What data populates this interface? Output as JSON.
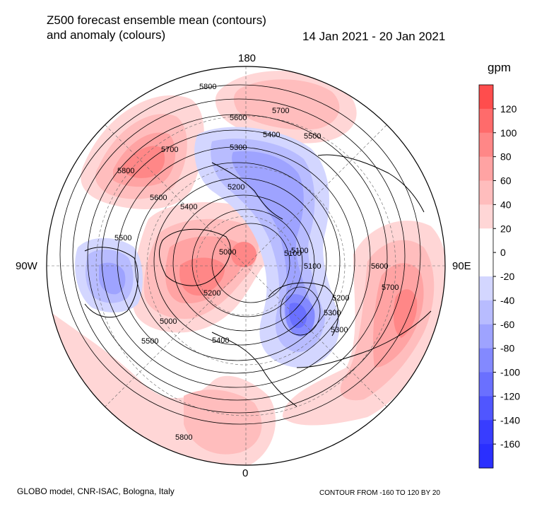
{
  "header": {
    "title_line1": "Z500 forecast ensemble mean (contours)",
    "title_line2": "and anomaly (colours)",
    "period": "14 Jan 2021 - 20 Jan 2021"
  },
  "map": {
    "projection": "north-polar-stereographic",
    "lon_labels": {
      "top": "180",
      "left": "90W",
      "right": "90E",
      "bottom": "0"
    },
    "contour_labels": [
      "5800",
      "5700",
      "5600",
      "5500",
      "5400",
      "5300",
      "5200",
      "5100",
      "5000",
      "5800",
      "5700",
      "5600",
      "5500",
      "5400",
      "5300",
      "5200",
      "5100",
      "5000",
      "5800",
      "5700",
      "5600",
      "5500",
      "5400",
      "5300",
      "5200",
      "5100"
    ],
    "anomaly_regions": [
      {
        "name": "north-pacific-positive",
        "sign": "positive"
      },
      {
        "name": "siberia-negative",
        "sign": "negative"
      },
      {
        "name": "eurasia-positive",
        "sign": "positive"
      },
      {
        "name": "north-america-negative",
        "sign": "negative"
      },
      {
        "name": "greenland-positive",
        "sign": "positive"
      },
      {
        "name": "europe-negative",
        "sign": "negative"
      }
    ]
  },
  "colorbar": {
    "unit": "gpm",
    "ticks": [
      "120",
      "100",
      "80",
      "60",
      "40",
      "20",
      "0",
      "-20",
      "-40",
      "-60",
      "-80",
      "-100",
      "-120",
      "-140",
      "-160"
    ],
    "colors": [
      "#ff4d4d",
      "#ff6b6b",
      "#ff8787",
      "#ffa3a3",
      "#ffbdbd",
      "#ffd6d6",
      "#ffffff",
      "#ffffff",
      "#d3d6ff",
      "#b8bcff",
      "#9ea3ff",
      "#8389ff",
      "#6a70ff",
      "#5056ff",
      "#383dff",
      "#2a2fff"
    ]
  },
  "footer": {
    "model": "GLOBO model, CNR-ISAC, Bologna, Italy",
    "contour_info": "CONTOUR FROM -160 TO 120 BY 20"
  }
}
